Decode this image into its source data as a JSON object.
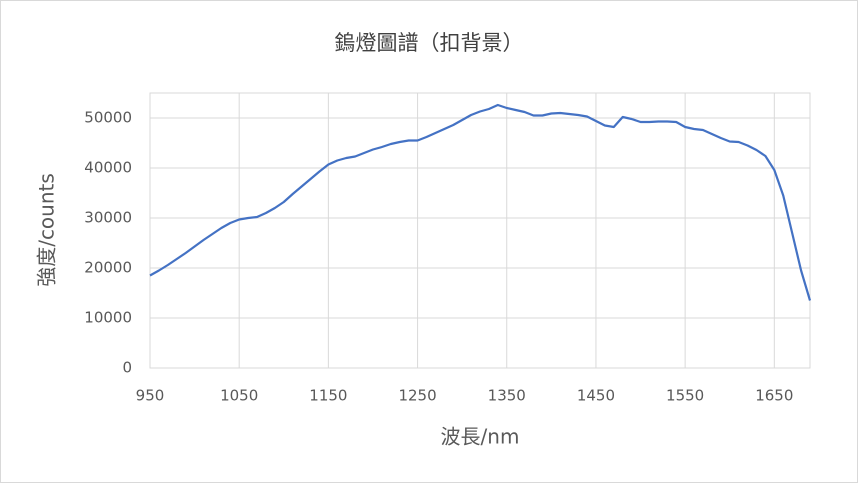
{
  "chart_data": {
    "type": "line",
    "title": "鎢燈圖譜（扣背景）",
    "x_label": "波長/nm",
    "y_label": "強度/counts",
    "x": [
      950,
      960,
      970,
      980,
      990,
      1000,
      1010,
      1020,
      1030,
      1040,
      1050,
      1060,
      1070,
      1080,
      1090,
      1100,
      1110,
      1120,
      1130,
      1140,
      1150,
      1160,
      1170,
      1180,
      1190,
      1200,
      1210,
      1220,
      1230,
      1240,
      1250,
      1260,
      1270,
      1280,
      1290,
      1300,
      1310,
      1320,
      1330,
      1340,
      1350,
      1360,
      1370,
      1380,
      1390,
      1400,
      1410,
      1420,
      1430,
      1440,
      1450,
      1460,
      1470,
      1480,
      1490,
      1500,
      1510,
      1520,
      1530,
      1540,
      1550,
      1560,
      1570,
      1580,
      1590,
      1600,
      1610,
      1620,
      1630,
      1640,
      1650,
      1660,
      1670,
      1680,
      1690
    ],
    "series": [
      {
        "color": "#4472c4",
        "values": [
          18500,
          19500,
          20600,
          21800,
          23000,
          24300,
          25600,
          26800,
          28000,
          29000,
          29700,
          30000,
          30200,
          31000,
          32000,
          33200,
          34800,
          36300,
          37800,
          39300,
          40700,
          41500,
          42000,
          42300,
          43000,
          43700,
          44200,
          44800,
          45200,
          45500,
          45500,
          46200,
          47000,
          47800,
          48600,
          49600,
          50600,
          51300,
          51800,
          52600,
          52000,
          51600,
          51200,
          50500,
          50500,
          50900,
          51000,
          50800,
          50600,
          50300,
          49400,
          48500,
          48200,
          50200,
          49800,
          49200,
          49200,
          49300,
          49300,
          49200,
          48200,
          47800,
          47600,
          46800,
          46000,
          45300,
          45200,
          44500,
          43600,
          42400,
          39600,
          34500,
          27000,
          19500,
          13500
        ]
      }
    ],
    "xlim": [
      950,
      1690
    ],
    "xticks": [
      950,
      1050,
      1150,
      1250,
      1350,
      1450,
      1550,
      1650
    ],
    "ylim": [
      0,
      55000
    ],
    "yticks": [
      0,
      10000,
      20000,
      30000,
      40000,
      50000
    ],
    "grid": true
  }
}
